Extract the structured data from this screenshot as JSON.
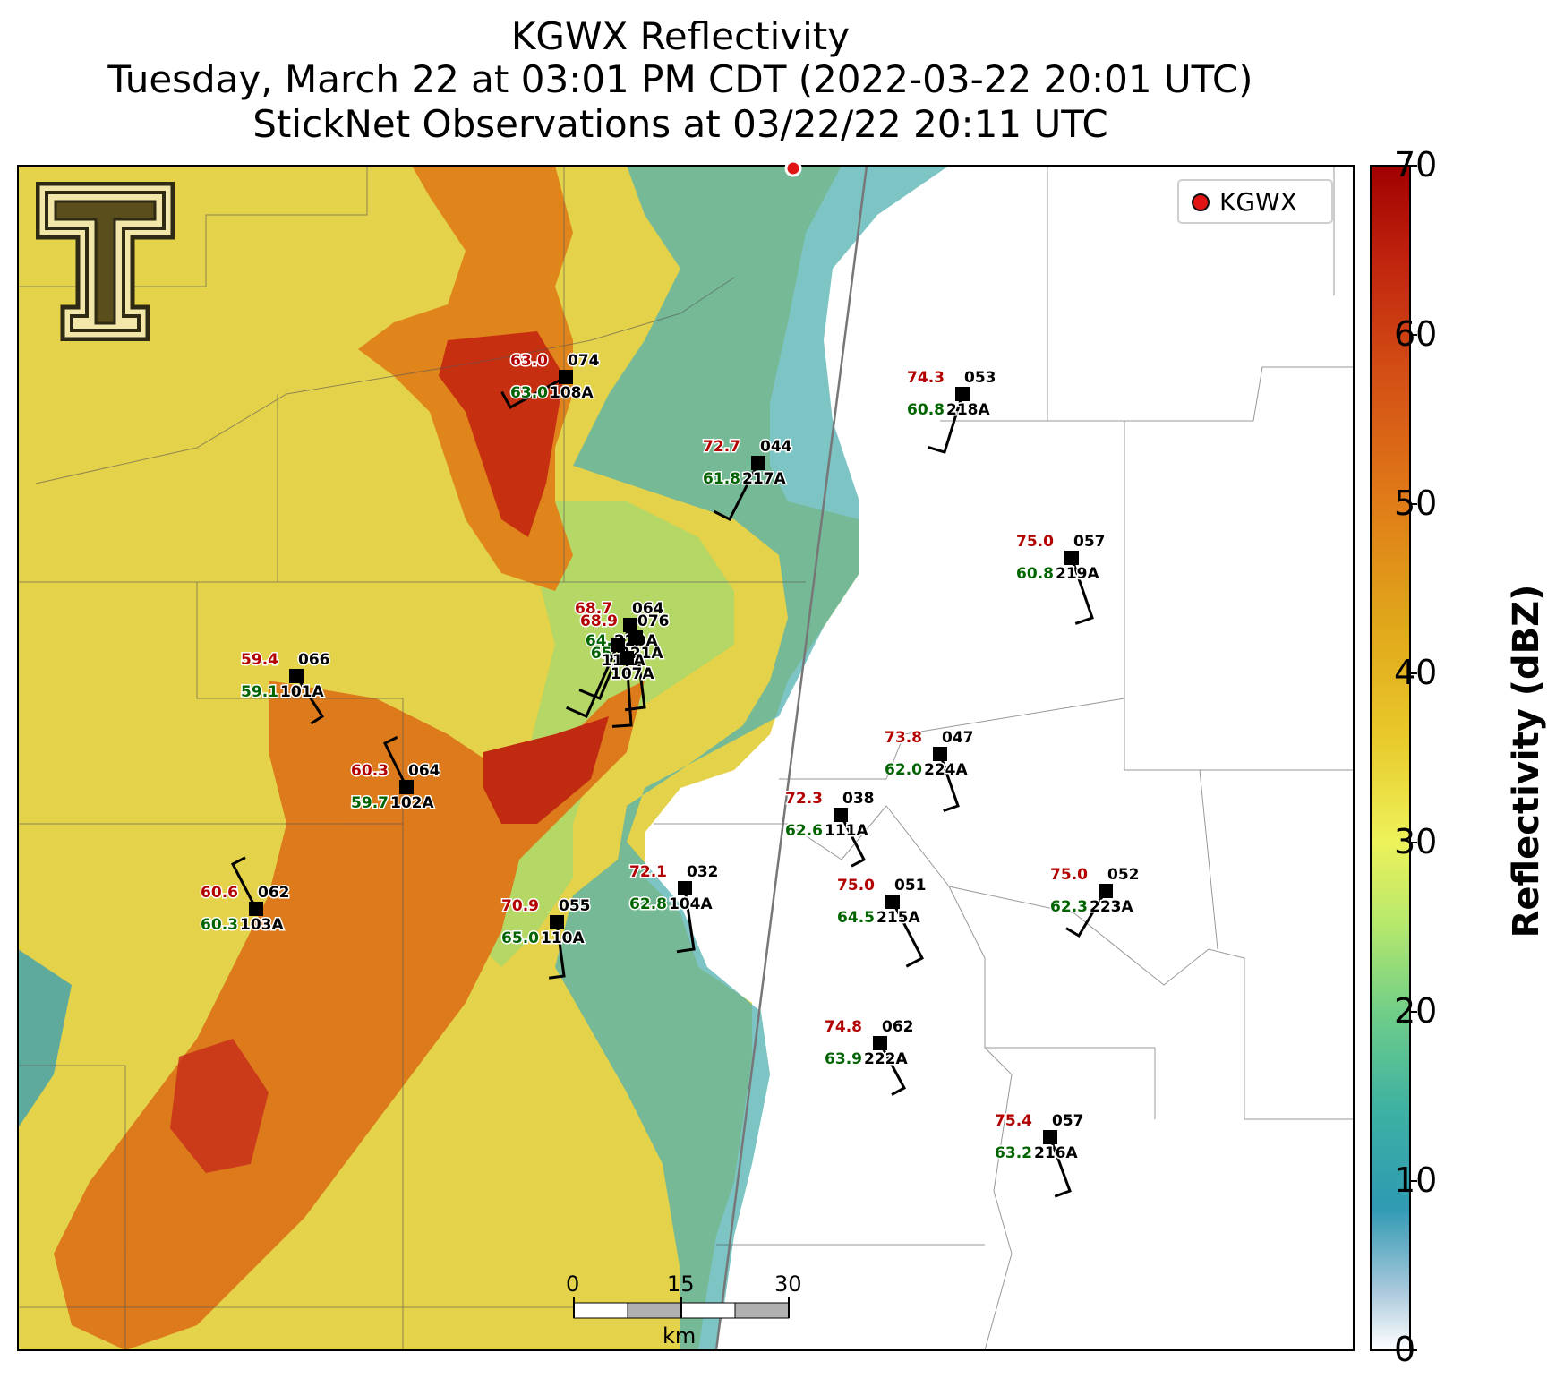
{
  "title": {
    "line1": "KGWX Reflectivity",
    "line2": "Tuesday, March 22 at 03:01 PM CDT (2022-03-22 20:01 UTC)",
    "line3": "StickNet Observations at 03/22/22 20:11 UTC"
  },
  "legend": {
    "label": "KGWX",
    "marker_color": "#e01414"
  },
  "colorbar": {
    "label": "Reflectivity (dBZ)",
    "ticks": [
      "70",
      "60",
      "50",
      "40",
      "30",
      "20",
      "10",
      "0"
    ]
  },
  "scale_bar": {
    "ticks": [
      "0",
      "15",
      "30"
    ],
    "unit": "km"
  },
  "logo": {
    "name": "texas-tech-double-t-logo"
  },
  "stations": [
    {
      "id": "108A",
      "temp": "63.0",
      "dew": "63.0",
      "dir": "074"
    },
    {
      "id": "217A",
      "temp": "72.7",
      "dew": "61.8",
      "dir": "044"
    },
    {
      "id": "218A",
      "temp": "74.3",
      "dew": "60.8",
      "dir": "053"
    },
    {
      "id": "219A",
      "temp": "75.0",
      "dew": "60.8",
      "dir": "057"
    },
    {
      "id": "101A",
      "temp": "59.4",
      "dew": "59.1",
      "dir": "066"
    },
    {
      "id": "102A",
      "temp": "60.3",
      "dew": "59.7",
      "dir": "064"
    },
    {
      "id": "103A",
      "temp": "60.6",
      "dew": "60.3",
      "dir": "062"
    },
    {
      "id": "110A",
      "temp": "70.9",
      "dew": "65.0",
      "dir": "055"
    },
    {
      "id": "104A",
      "temp": "72.1",
      "dew": "62.8",
      "dir": "032"
    },
    {
      "id": "111A",
      "temp": "72.3",
      "dew": "62.6",
      "dir": "038"
    },
    {
      "id": "224A",
      "temp": "73.8",
      "dew": "62.0",
      "dir": "047"
    },
    {
      "id": "215A",
      "temp": "75.0",
      "dew": "64.5",
      "dir": "051"
    },
    {
      "id": "223A",
      "temp": "75.0",
      "dew": "62.3",
      "dir": "052"
    },
    {
      "id": "222A",
      "temp": "74.8",
      "dew": "63.9",
      "dir": "062"
    },
    {
      "id": "216A",
      "temp": "75.4",
      "dew": "63.2",
      "dir": "057"
    },
    {
      "id": "220A",
      "temp": "68.7",
      "dew": "64.",
      "dir": "064"
    },
    {
      "id": "221A",
      "temp": "68.9",
      "dew": "65.",
      "dir": "076"
    },
    {
      "id": "114A",
      "temp": "",
      "dew": "",
      "dir": ""
    },
    {
      "id": "107A",
      "temp": "",
      "dew": "",
      "dir": ""
    }
  ],
  "colors": {
    "temp": "#b30000",
    "dew": "#006400",
    "station": "#000000",
    "radar_site": "#e01414"
  }
}
